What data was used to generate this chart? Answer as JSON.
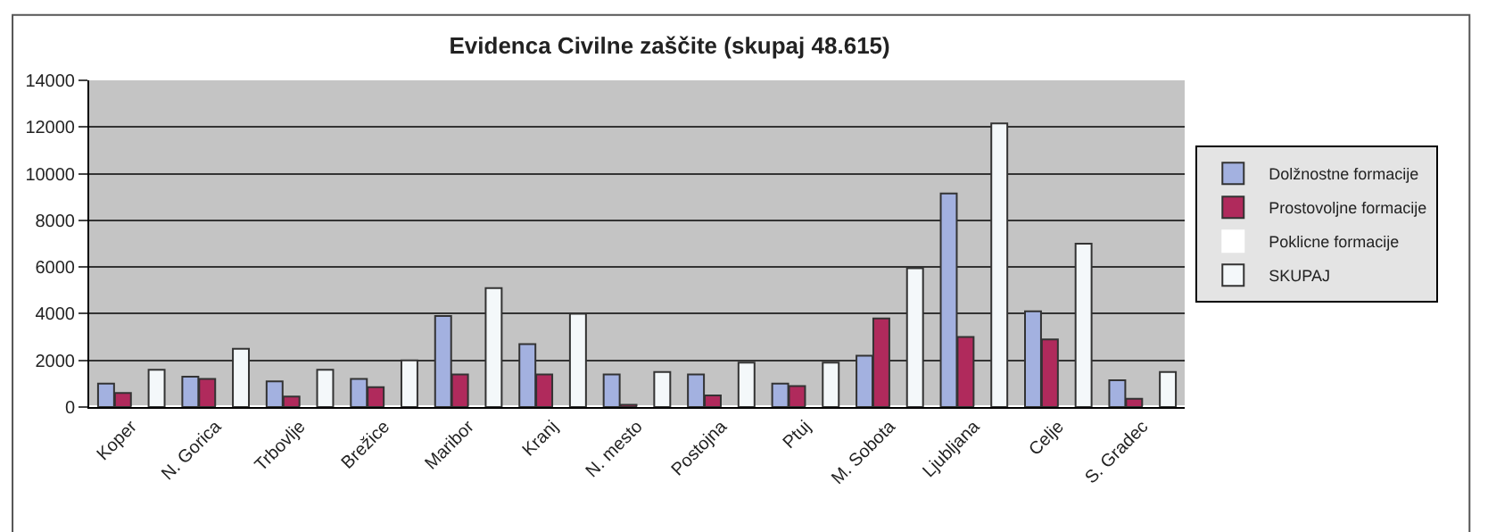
{
  "chart_data": {
    "type": "bar",
    "title": "Evidenca Civilne zaščite (skupaj 48.615)",
    "categories": [
      "Koper",
      "N. Gorica",
      "Trbovlje",
      "Brežice",
      "Maribor",
      "Kranj",
      "N. mesto",
      "Postojna",
      "Ptuj",
      "M. Sobota",
      "Ljubljana",
      "Celje",
      "S. Gradec"
    ],
    "series": [
      {
        "name": "Dolžnostne formacije",
        "color": "#a3b1e0",
        "values": [
          1000,
          1300,
          1100,
          1200,
          3900,
          2700,
          1400,
          1400,
          1000,
          2200,
          9150,
          4100,
          1150
        ]
      },
      {
        "name": "Prostovoljne formacije",
        "color": "#b02a5c",
        "values": [
          600,
          1200,
          450,
          850,
          1400,
          1400,
          100,
          500,
          900,
          3800,
          3000,
          2900,
          350
        ]
      },
      {
        "name": "Poklicne formacije",
        "color": "#ffffff",
        "values": [
          0,
          0,
          0,
          0,
          0,
          0,
          0,
          0,
          0,
          0,
          0,
          0,
          0
        ]
      },
      {
        "name": "SKUPAJ",
        "color": "#f4f8fa",
        "values": [
          1600,
          2500,
          1600,
          2000,
          5100,
          4000,
          1500,
          1900,
          1900,
          5950,
          12150,
          7000,
          1500
        ]
      }
    ],
    "ylim": [
      0,
      14000
    ],
    "yticks": [
      0,
      2000,
      4000,
      6000,
      8000,
      10000,
      12000,
      14000
    ],
    "grid": "y",
    "legend": "right"
  }
}
